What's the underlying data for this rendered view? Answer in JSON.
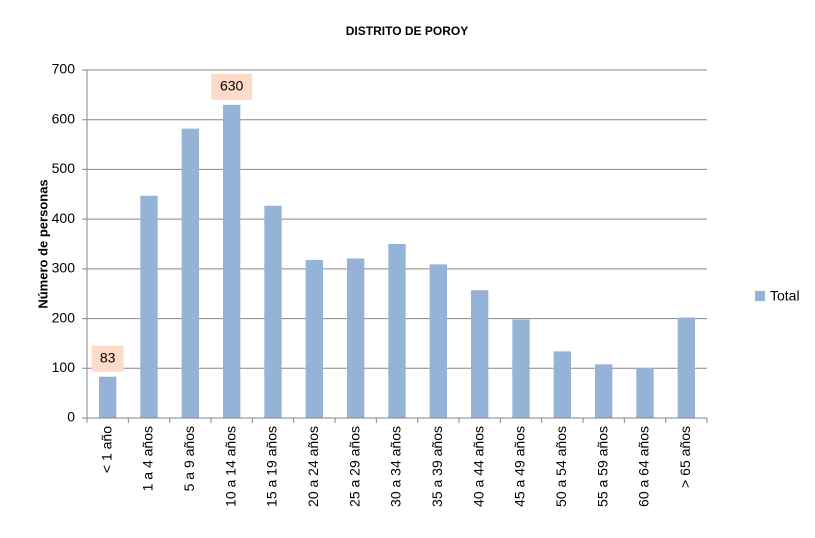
{
  "chart_data": {
    "type": "bar",
    "title": "DISTRITO DE POROY",
    "ylabel": "Número de personas",
    "categories": [
      "< 1 año",
      "1 a 4 años",
      "5 a 9 años",
      "10 a 14 años",
      "15 a 19 años",
      "20 a 24 años",
      "25 a 29 años",
      "30 a 34 años",
      "35 a 39 años",
      "40 a 44 años",
      "45 a 49 años",
      "50 a 54 años",
      "55 a 59 años",
      "60 a 64 años",
      "> 65 años"
    ],
    "series": [
      {
        "name": "Total",
        "color": "#95b3d7",
        "values": [
          83,
          447,
          582,
          630,
          427,
          318,
          321,
          350,
          309,
          257,
          198,
          134,
          108,
          101,
          202
        ],
        "value_labels": [
          "83",
          null,
          null,
          "630",
          null,
          null,
          null,
          null,
          null,
          null,
          null,
          null,
          null,
          null,
          null
        ]
      }
    ],
    "ylim": [
      0,
      700
    ],
    "yticks": [
      0,
      100,
      200,
      300,
      400,
      500,
      600,
      700
    ],
    "grid": true,
    "legend": "right"
  }
}
